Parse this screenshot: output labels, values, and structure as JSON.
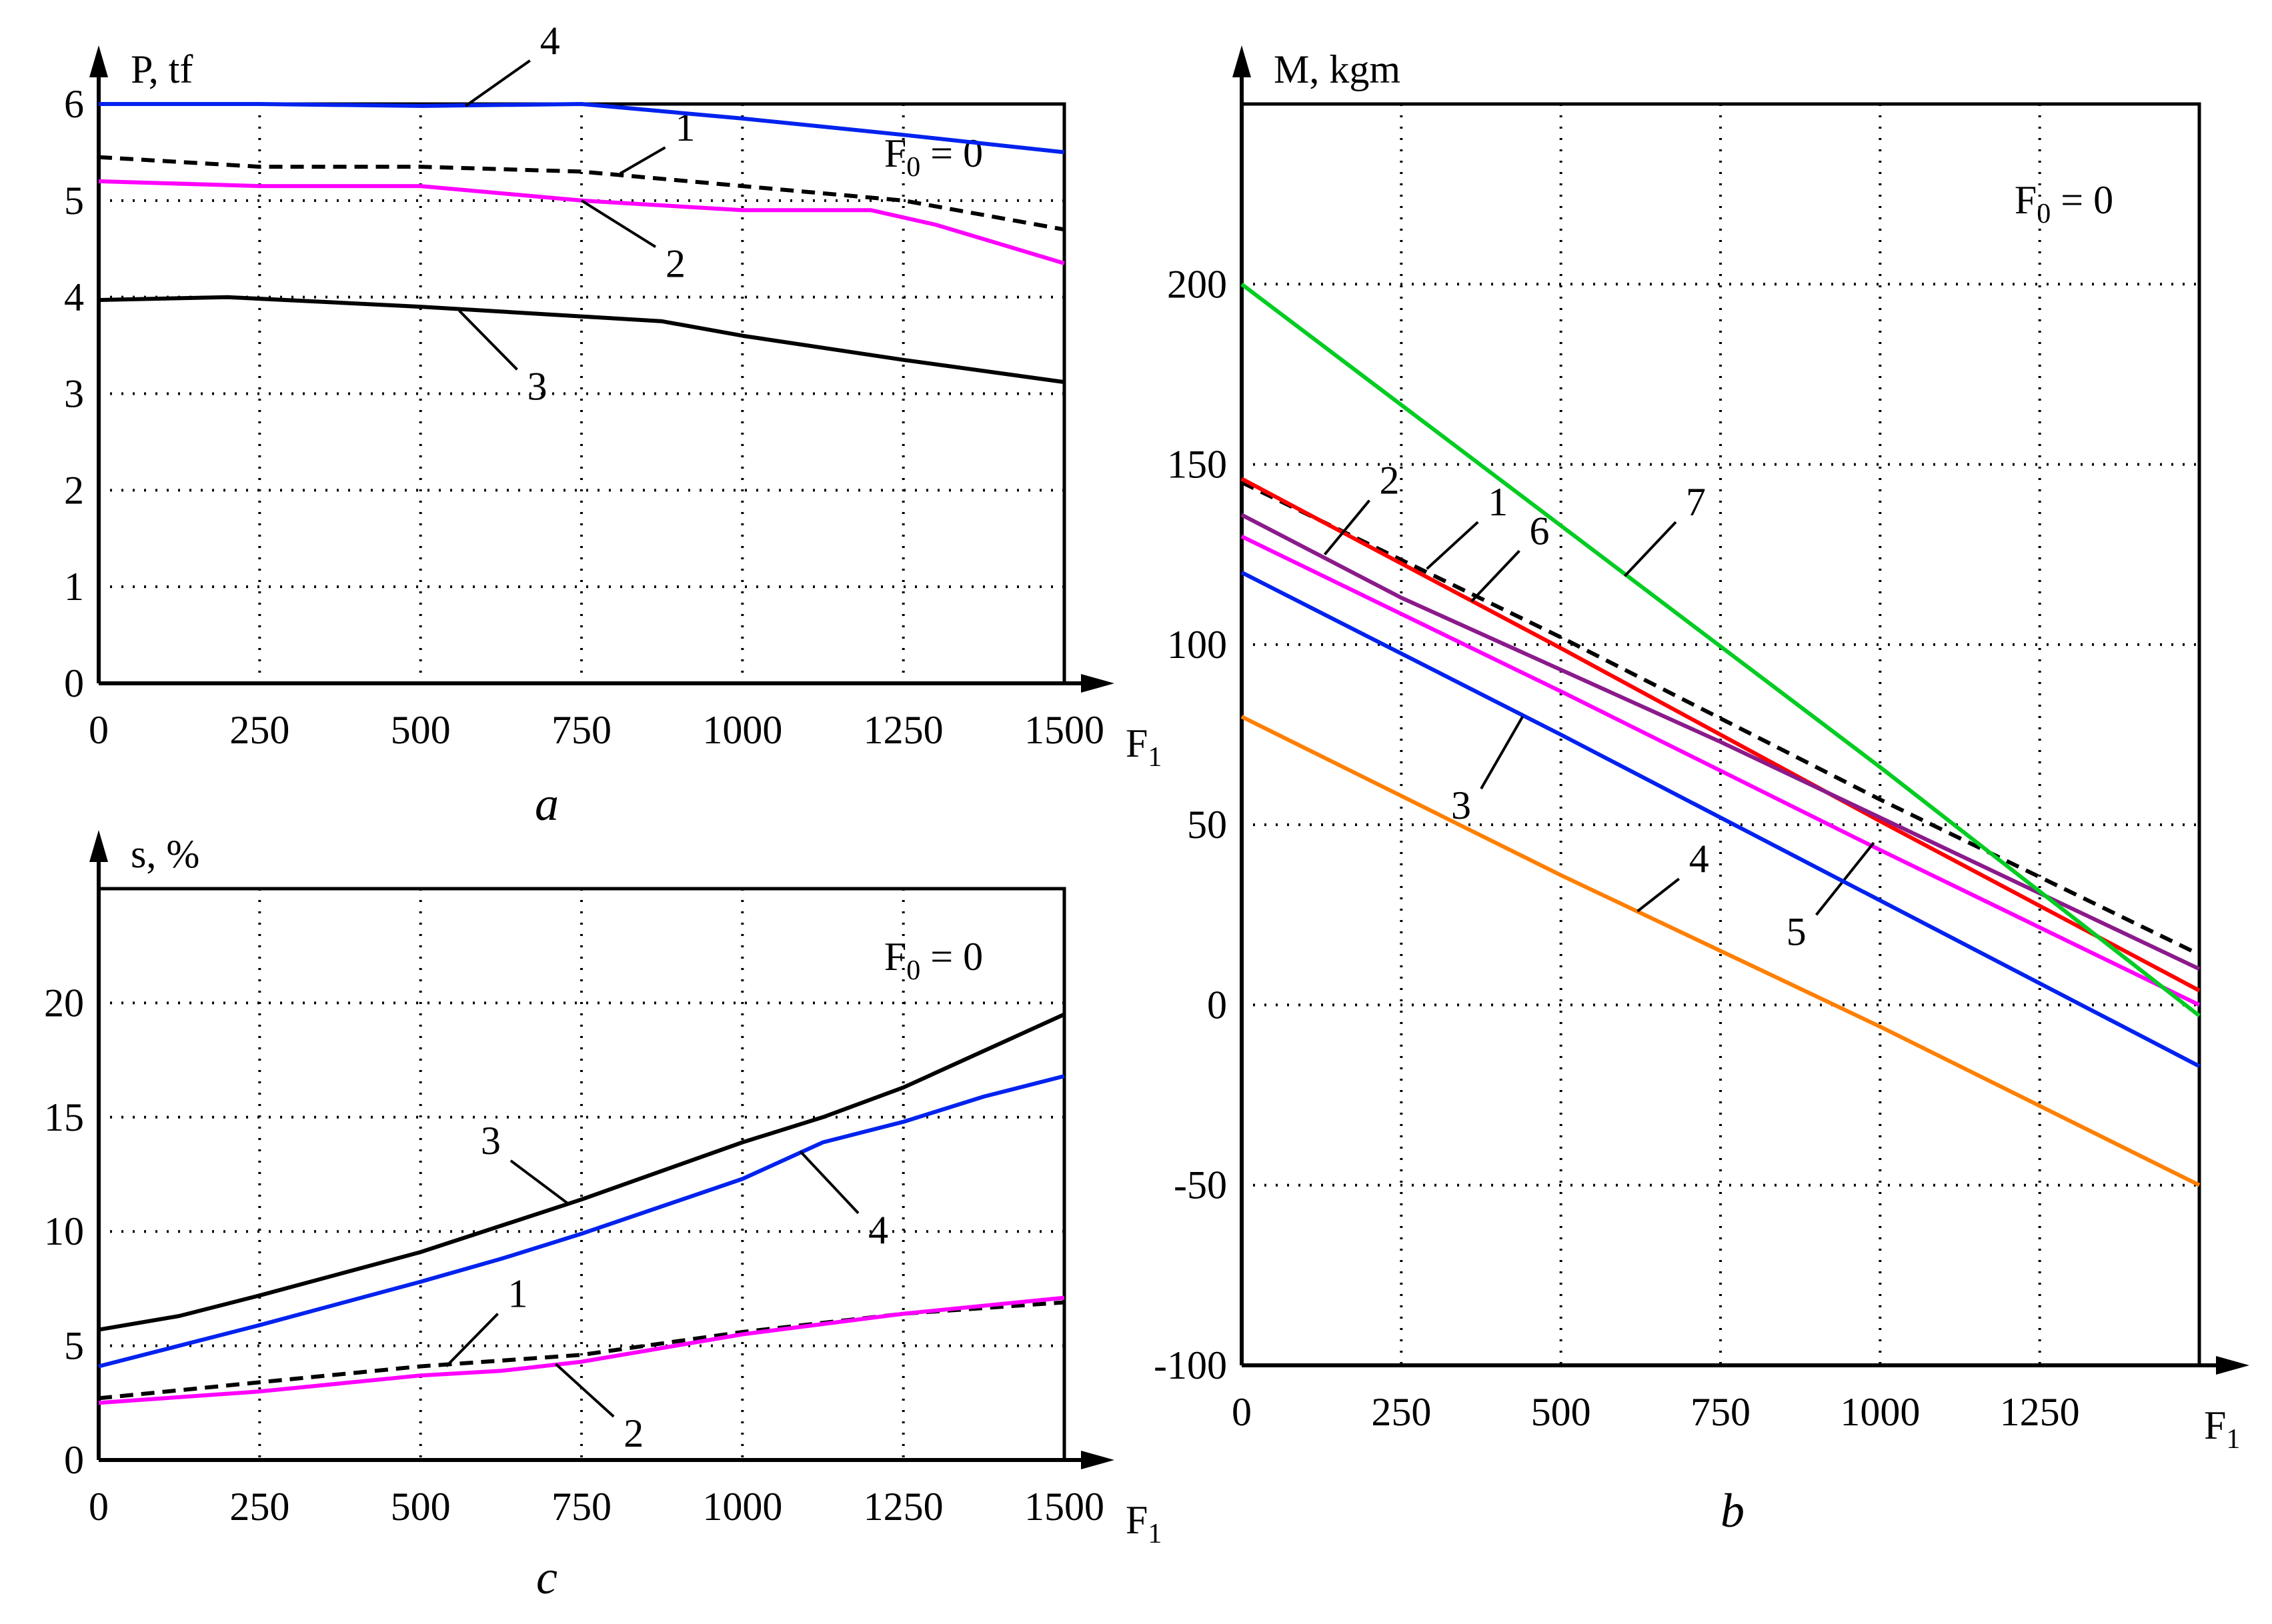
{
  "chart_data": [
    {
      "id": "a",
      "type": "line",
      "caption": "a",
      "ylabel": "P, tf",
      "xlabel": "F",
      "xlabel_sub": "1",
      "annotation": "F",
      "annotation_sub": "0",
      "annotation_rest": " = 0",
      "xlim": [
        0,
        1500
      ],
      "ylim": [
        0,
        6
      ],
      "xticks": [
        0,
        250,
        500,
        750,
        1000,
        1250,
        1500
      ],
      "xtick_labels": [
        "0",
        "250",
        "500",
        "750",
        "1000",
        "1250",
        "1500"
      ],
      "yticks": [
        0,
        1,
        2,
        3,
        4,
        5,
        6
      ],
      "ytick_labels": [
        "0",
        "1",
        "2",
        "3",
        "4",
        "5",
        "6"
      ],
      "grid": true,
      "series": [
        {
          "name": "1",
          "color": "#000000",
          "dashed": true,
          "x": [
            0,
            250,
            500,
            750,
            1000,
            1250,
            1500
          ],
          "y": [
            5.45,
            5.35,
            5.35,
            5.3,
            5.15,
            5.0,
            4.7
          ],
          "label_at": [
            810,
            5.28
          ],
          "label_pos": [
            880,
            5.55
          ]
        },
        {
          "name": "2",
          "color": "#ff00ff",
          "dashed": false,
          "x": [
            0,
            250,
            500,
            750,
            1000,
            1200,
            1300,
            1500
          ],
          "y": [
            5.2,
            5.15,
            5.15,
            5.0,
            4.9,
            4.9,
            4.75,
            4.35
          ],
          "label_at": [
            750,
            5.0
          ],
          "label_pos": [
            865,
            4.52
          ]
        },
        {
          "name": "3",
          "color": "#000000",
          "dashed": false,
          "x": [
            0,
            200,
            500,
            750,
            875,
            1000,
            1250,
            1500
          ],
          "y": [
            3.97,
            4.0,
            3.9,
            3.8,
            3.75,
            3.6,
            3.35,
            3.12
          ],
          "label_at": [
            560,
            3.86
          ],
          "label_pos": [
            650,
            3.25
          ]
        },
        {
          "name": "4",
          "color": "#0022ee",
          "dashed": false,
          "x": [
            0,
            250,
            500,
            750,
            1000,
            1250,
            1500
          ],
          "y": [
            6.0,
            6.0,
            5.98,
            6.0,
            5.85,
            5.68,
            5.5
          ],
          "label_at": [
            570,
            5.98
          ],
          "label_pos": [
            670,
            6.45
          ]
        }
      ]
    },
    {
      "id": "c",
      "type": "line",
      "caption": "c",
      "ylabel": "s, %",
      "xlabel": "F",
      "xlabel_sub": "1",
      "annotation": "F",
      "annotation_sub": "0",
      "annotation_rest": " = 0",
      "xlim": [
        0,
        1500
      ],
      "ylim": [
        0,
        25
      ],
      "xticks": [
        0,
        250,
        500,
        750,
        1000,
        1250,
        1500
      ],
      "xtick_labels": [
        "0",
        "250",
        "500",
        "750",
        "1000",
        "1250",
        "1500"
      ],
      "yticks": [
        0,
        5,
        10,
        15,
        20
      ],
      "ytick_labels": [
        "0",
        "5",
        "10",
        "15",
        "20"
      ],
      "grid": true,
      "series": [
        {
          "name": "1",
          "color": "#000000",
          "dashed": true,
          "x": [
            0,
            250,
            500,
            750,
            1000,
            1250,
            1500
          ],
          "y": [
            2.7,
            3.4,
            4.1,
            4.6,
            5.6,
            6.4,
            6.9
          ],
          "label_at": [
            540,
            4.1
          ],
          "label_pos": [
            620,
            6.4
          ]
        },
        {
          "name": "2",
          "color": "#ff00ff",
          "dashed": false,
          "x": [
            0,
            250,
            500,
            625,
            750,
            1000,
            1250,
            1500
          ],
          "y": [
            2.5,
            3.0,
            3.7,
            3.9,
            4.3,
            5.5,
            6.4,
            7.1
          ],
          "label_at": [
            710,
            4.2
          ],
          "label_pos": [
            800,
            1.9
          ]
        },
        {
          "name": "3",
          "color": "#000000",
          "dashed": false,
          "x": [
            0,
            125,
            250,
            500,
            750,
            1000,
            1125,
            1250,
            1375,
            1500
          ],
          "y": [
            5.7,
            6.3,
            7.2,
            9.1,
            11.4,
            13.9,
            15.0,
            16.3,
            17.9,
            19.5
          ],
          "label_at": [
            730,
            11.2
          ],
          "label_pos": [
            640,
            13.1
          ]
        },
        {
          "name": "4",
          "color": "#0022ee",
          "dashed": false,
          "x": [
            0,
            250,
            500,
            625,
            750,
            1000,
            1125,
            1250,
            1375,
            1500
          ],
          "y": [
            4.1,
            5.9,
            7.8,
            8.8,
            9.9,
            12.3,
            13.9,
            14.8,
            15.9,
            16.8
          ],
          "label_at": [
            1090,
            13.5
          ],
          "label_pos": [
            1180,
            10.8
          ]
        }
      ]
    },
    {
      "id": "b",
      "type": "line",
      "caption": "b",
      "ylabel": "M, kgm",
      "xlabel": "F",
      "xlabel_sub": "1",
      "annotation": "F",
      "annotation_sub": "0",
      "annotation_rest": " = 0",
      "xlim": [
        0,
        1500
      ],
      "ylim": [
        -100,
        250
      ],
      "xticks": [
        0,
        250,
        500,
        750,
        1000,
        1250,
        1500
      ],
      "xtick_labels": [
        "0",
        "250",
        "500",
        "750",
        "1000",
        "1250",
        ""
      ],
      "yticks": [
        -100,
        -50,
        0,
        50,
        100,
        150,
        200
      ],
      "ytick_labels": [
        "-100",
        "-50",
        "0",
        "50",
        "100",
        "150",
        "200"
      ],
      "grid": true,
      "series": [
        {
          "name": "1",
          "color": "#000000",
          "dashed": true,
          "x": [
            0,
            500,
            1000,
            1500
          ],
          "y": [
            145,
            102,
            57,
            14
          ],
          "label_at": [
            290,
            121
          ],
          "label_pos": [
            370,
            134
          ]
        },
        {
          "name": "6",
          "color": "#ff0000",
          "dashed": false,
          "x": [
            0,
            500,
            1000,
            1500
          ],
          "y": [
            146,
            99,
            51,
            4
          ],
          "label_at": [
            360,
            112
          ],
          "label_pos": [
            435,
            126
          ]
        },
        {
          "name": "2",
          "color": "#8b1a8b",
          "dashed": false,
          "x": [
            0,
            250,
            500,
            750,
            1000,
            1250,
            1500
          ],
          "y": [
            136,
            113,
            93,
            73,
            52,
            31,
            10
          ],
          "label_at": [
            130,
            125
          ],
          "label_pos": [
            200,
            140
          ]
        },
        {
          "name": "5",
          "color": "#ff00ff",
          "dashed": false,
          "x": [
            0,
            500,
            1000,
            1500
          ],
          "y": [
            130,
            87,
            43,
            0
          ],
          "label_at": [
            990,
            45
          ],
          "label_pos": [
            900,
            25
          ]
        },
        {
          "name": "3",
          "color": "#0022ee",
          "dashed": false,
          "x": [
            0,
            500,
            1000,
            1500
          ],
          "y": [
            120,
            75,
            29,
            -17
          ],
          "label_at": [
            440,
            80
          ],
          "label_pos": [
            375,
            60
          ]
        },
        {
          "name": "4",
          "color": "#ff7f00",
          "dashed": false,
          "x": [
            0,
            500,
            1000,
            1500
          ],
          "y": [
            80,
            36,
            -6,
            -50
          ],
          "label_at": [
            620,
            26
          ],
          "label_pos": [
            685,
            35
          ]
        },
        {
          "name": "7",
          "color": "#00cc22",
          "dashed": false,
          "x": [
            0,
            500,
            1000,
            1500
          ],
          "y": [
            200,
            133,
            66,
            -3
          ],
          "label_at": [
            600,
            119
          ],
          "label_pos": [
            680,
            134
          ]
        }
      ]
    }
  ]
}
